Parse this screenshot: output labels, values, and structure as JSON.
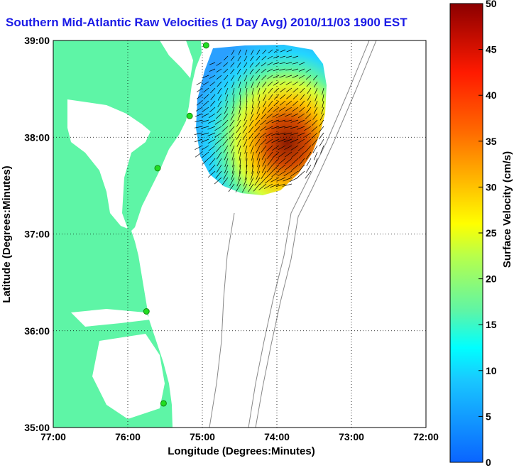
{
  "title": "Southern Mid-Atlantic Raw Velocities (1 Day Avg) 2010/11/03 1900 EST",
  "colors": {
    "land": "#5ef5a6",
    "water": "#ffffff",
    "station": "#22dd22",
    "title": "#1a1ae6",
    "bathymetry": "#888888"
  },
  "map": {
    "xlabel": "Longitude (Degrees:Minutes)",
    "ylabel": "Latitude (Degrees:Minutes)",
    "xlim": [
      -77,
      -72
    ],
    "ylim": [
      35,
      39
    ],
    "x_ticks": [
      {
        "value": -77,
        "label": "77:00"
      },
      {
        "value": -76,
        "label": "76:00"
      },
      {
        "value": -75,
        "label": "75:00"
      },
      {
        "value": -74,
        "label": "74:00"
      },
      {
        "value": -73,
        "label": "73:00"
      },
      {
        "value": -72,
        "label": "72:00"
      }
    ],
    "y_ticks": [
      {
        "value": 39,
        "label": "39:00"
      },
      {
        "value": 38,
        "label": "38:00"
      },
      {
        "value": 37,
        "label": "37:00"
      },
      {
        "value": 36,
        "label": "36:00"
      },
      {
        "value": 35,
        "label": "35:00"
      }
    ],
    "grid": "dotted",
    "stations": [
      {
        "lon": -74.95,
        "lat": 38.95
      },
      {
        "lon": -75.17,
        "lat": 38.22
      },
      {
        "lon": -75.6,
        "lat": 37.68
      },
      {
        "lon": -75.75,
        "lat": 36.2
      },
      {
        "lon": -75.52,
        "lat": 35.25
      }
    ]
  },
  "colorbar": {
    "label": "Surface Velocity (cm/s)",
    "min": 0,
    "max": 50,
    "ticks": [
      "0",
      "5",
      "10",
      "15",
      "20",
      "25",
      "30",
      "35",
      "40",
      "45",
      "50"
    ]
  }
}
